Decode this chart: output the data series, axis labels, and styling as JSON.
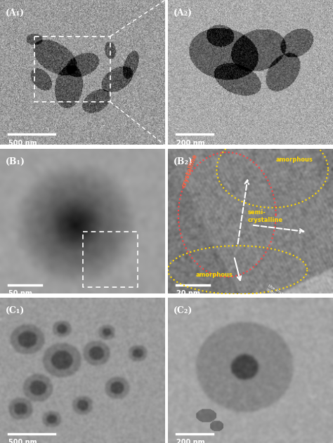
{
  "fig_width": 4.74,
  "fig_height": 6.31,
  "dpi": 100,
  "panels": [
    {
      "label": "(A₁)",
      "row": 0,
      "col": 0,
      "scale_text": "500 nm",
      "bg_mean": 155,
      "bg_std": 25
    },
    {
      "label": "(A₂)",
      "row": 0,
      "col": 1,
      "scale_text": "200 nm",
      "bg_mean": 170,
      "bg_std": 20
    },
    {
      "label": "(B₁)",
      "row": 1,
      "col": 0,
      "scale_text": "50 nm",
      "bg_mean": 160,
      "bg_std": 30
    },
    {
      "label": "(B₂)",
      "row": 1,
      "col": 1,
      "scale_text": "20 nm",
      "bg_mean": 120,
      "bg_std": 40
    },
    {
      "label": "(C₁)",
      "row": 2,
      "col": 0,
      "scale_text": "500 nm",
      "bg_mean": 150,
      "bg_std": 20
    },
    {
      "label": "(C₂)",
      "row": 2,
      "col": 1,
      "scale_text": "200 nm",
      "bg_mean": 165,
      "bg_std": 25
    }
  ],
  "label_color": "white",
  "scale_bar_color": "white",
  "border_color": "white",
  "sep_color": "white"
}
